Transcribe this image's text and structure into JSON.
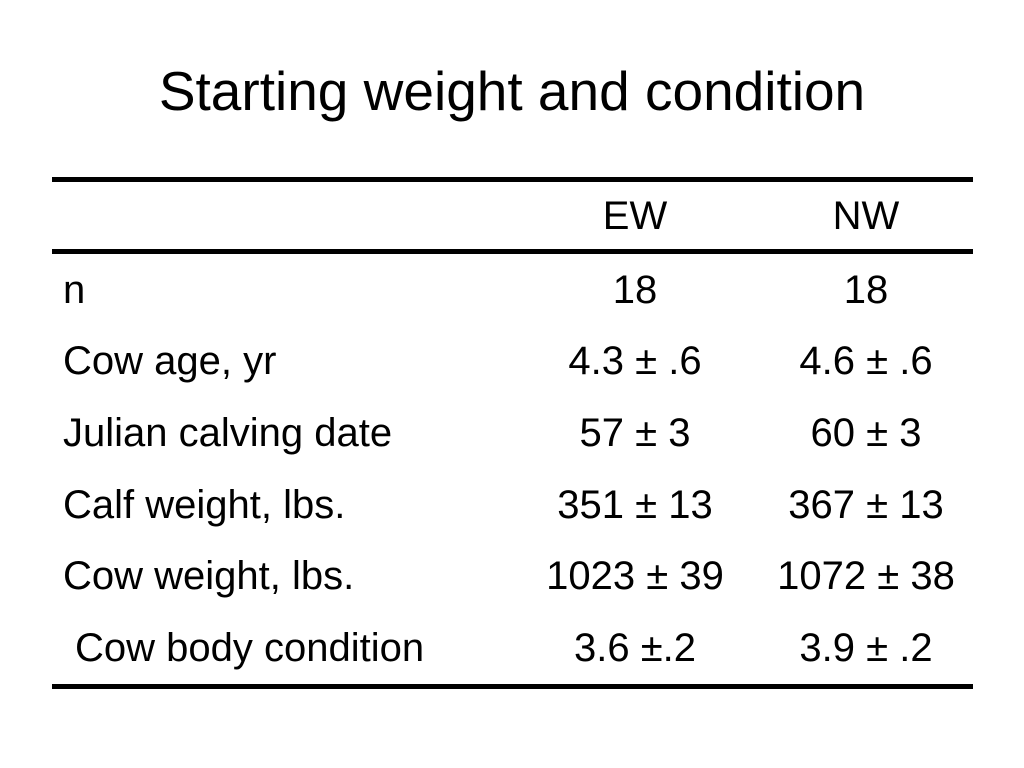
{
  "slide": {
    "title": "Starting weight and condition"
  },
  "table": {
    "header": {
      "label": "",
      "ew": "EW",
      "nw": "NW"
    },
    "rows": [
      {
        "label": "n",
        "ew": "18",
        "nw": "18"
      },
      {
        "label": "Cow age, yr",
        "ew": "4.3 ± .6",
        "nw": "4.6 ± .6"
      },
      {
        "label": "Julian calving date",
        "ew": "57 ± 3",
        "nw": "60 ± 3"
      },
      {
        "label": "Calf weight, lbs.",
        "ew": "351 ± 13",
        "nw": "367 ± 13"
      },
      {
        "label": "Cow weight, lbs.",
        "ew": "1023 ± 39",
        "nw": "1072 ± 38"
      },
      {
        "label": "Cow body condition",
        "ew": "3.6 ±.2",
        "nw": "3.9 ± .2"
      }
    ]
  },
  "colors": {
    "background": "#ffffff",
    "text": "#000000",
    "rule": "#000000"
  }
}
